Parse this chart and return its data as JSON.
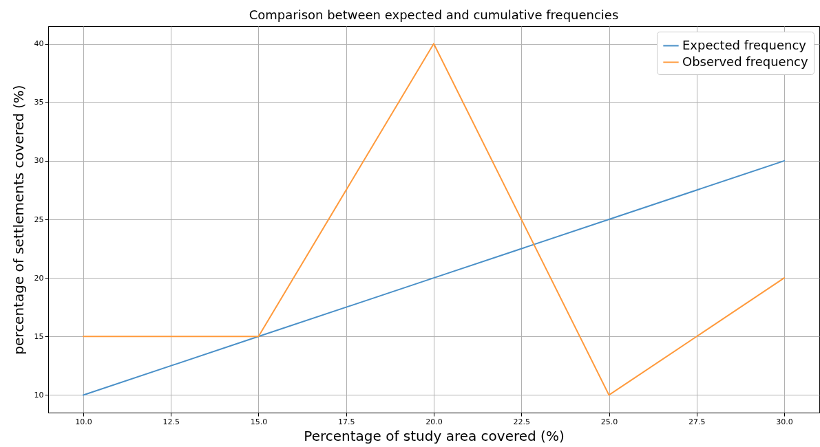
{
  "chart_data": {
    "type": "line",
    "title": "Comparison between expected and cumulative frequencies",
    "xlabel": "Percentage of study area covered (%)",
    "ylabel": "percentage of settlements covered (%)",
    "x": [
      10,
      15,
      20,
      25,
      30
    ],
    "series": [
      {
        "name": "Expected frequency",
        "color": "#4a90c8",
        "values": [
          10,
          15,
          20,
          25,
          30
        ]
      },
      {
        "name": "Observed frequency",
        "color": "#ff9a3c",
        "values": [
          15,
          15,
          40,
          10,
          20
        ]
      }
    ],
    "xlim": [
      9,
      31
    ],
    "xticks": [
      {
        "value": 10,
        "label": "10.0"
      },
      {
        "value": 12.5,
        "label": "12.5"
      },
      {
        "value": 15,
        "label": "15.0"
      },
      {
        "value": 17.5,
        "label": "17.5"
      },
      {
        "value": 20,
        "label": "20.0"
      },
      {
        "value": 22.5,
        "label": "22.5"
      },
      {
        "value": 25,
        "label": "25.0"
      },
      {
        "value": 27.5,
        "label": "27.5"
      },
      {
        "value": 30,
        "label": "30.0"
      }
    ],
    "ylim": [
      8.5,
      41.5
    ],
    "yticks": [
      10,
      15,
      20,
      25,
      30,
      35,
      40
    ],
    "grid": true,
    "legend": "top right",
    "marker": "none",
    "line_style": "solid"
  }
}
